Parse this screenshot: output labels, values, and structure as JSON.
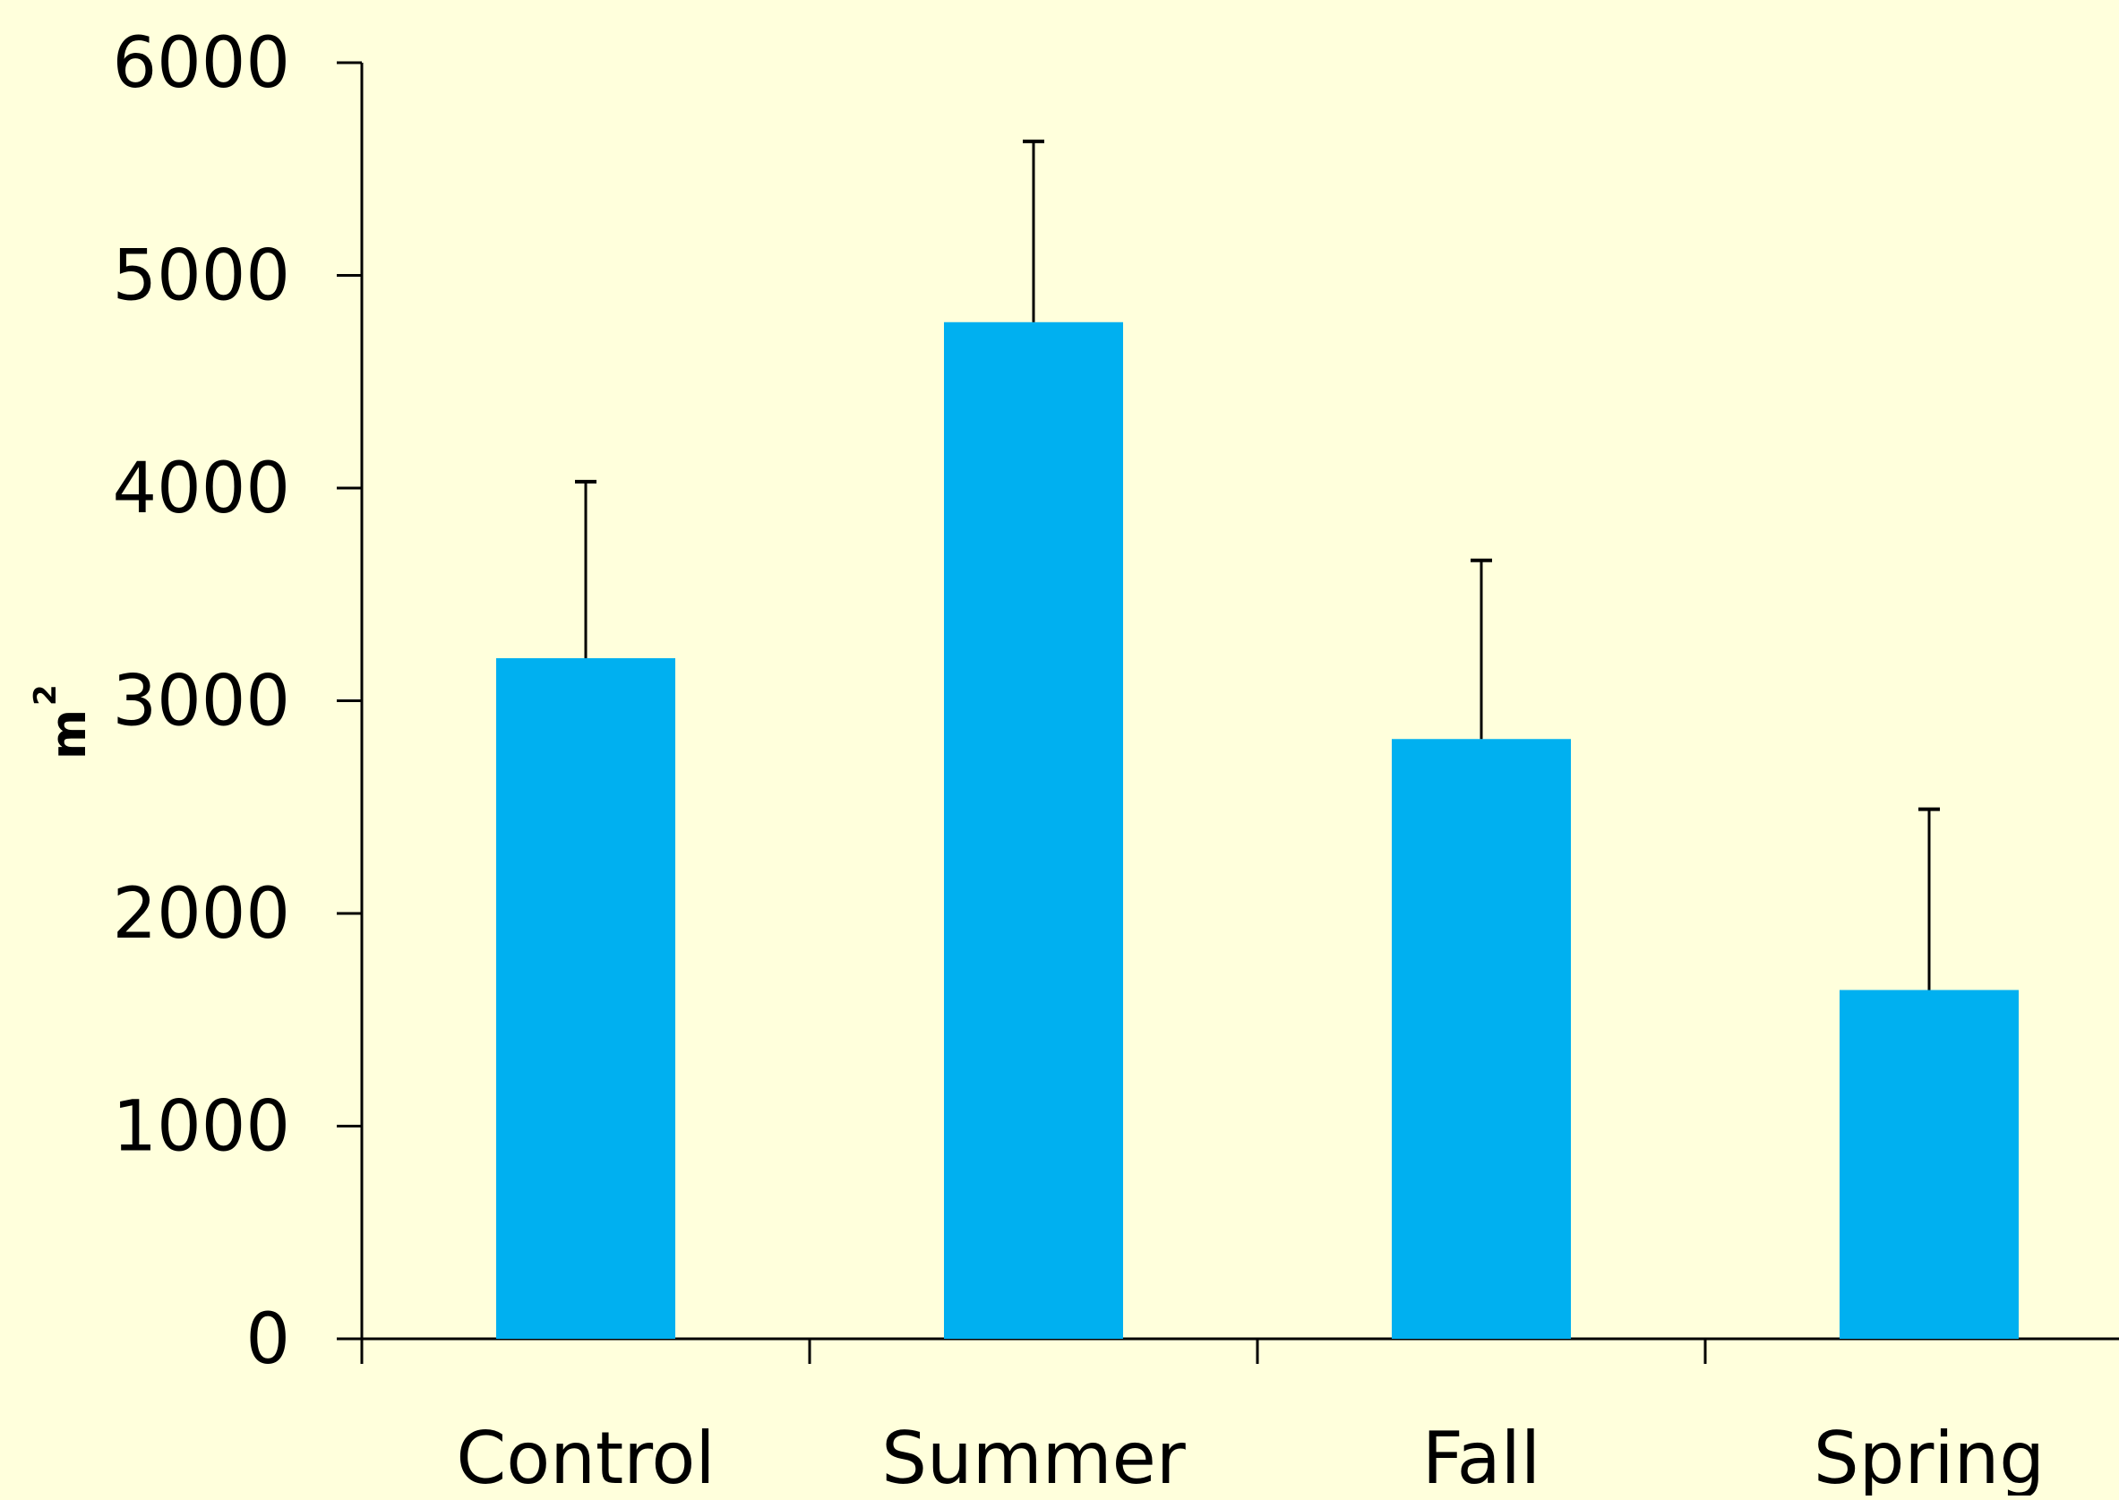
{
  "chart_data": {
    "type": "bar",
    "title": "",
    "xlabel": "",
    "ylabel": "m",
    "ylabel_superscript": "2",
    "categories": [
      "Control",
      "Summer",
      "Fall",
      "Spring"
    ],
    "values": [
      3200,
      4780,
      2820,
      1640
    ],
    "error_upper": [
      4030,
      5630,
      3660,
      2490
    ],
    "ylim": [
      0,
      6000
    ],
    "yticks": [
      0,
      1000,
      2000,
      3000,
      4000,
      5000,
      6000
    ],
    "ytick_labels": [
      "0",
      "1000",
      "2000",
      "3000",
      "4000",
      "5000",
      "6000"
    ],
    "grid": false,
    "legend": "none",
    "colors": {
      "background": "#ffffdc",
      "bar": "#00b0f0",
      "axis": "#000000"
    }
  }
}
